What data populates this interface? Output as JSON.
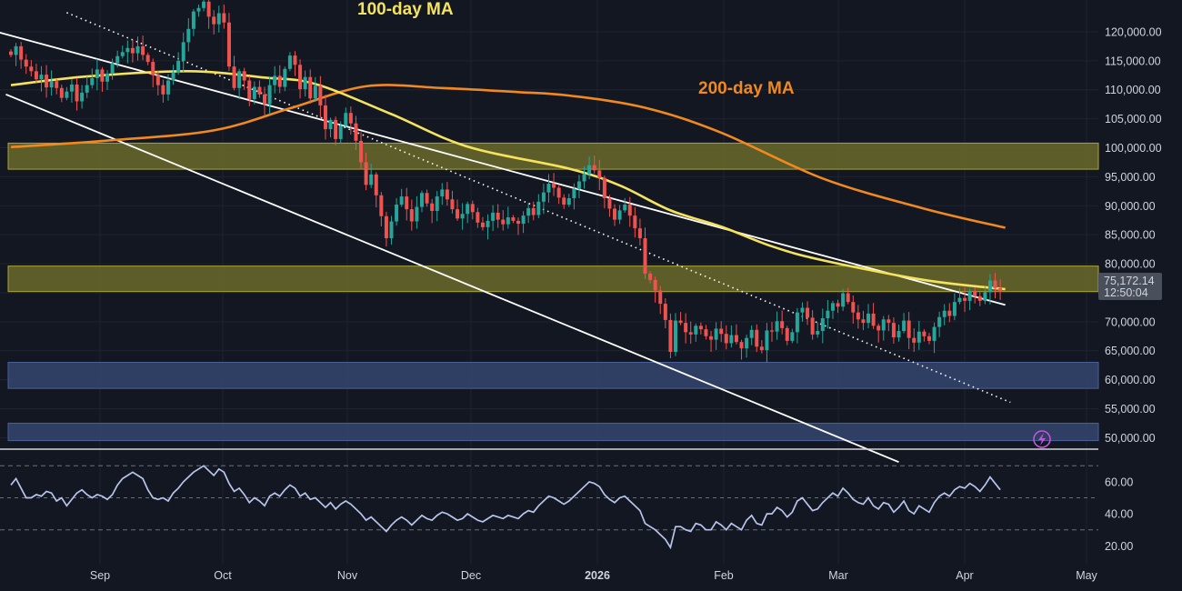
{
  "colors": {
    "background": "#131722",
    "grid": "#1f2330",
    "up": "#26a69a",
    "down": "#ef5350",
    "ma100": "#f5e35d",
    "ma200": "#f0891f",
    "rsi": "#b7c4ec",
    "zone_yellow": "#6b6a2a",
    "zone_blue": "#35456f",
    "channel": "#ffffff",
    "price_tag": "#4a4f5c",
    "lightning": "#c255d8"
  },
  "annotations": {
    "ma100": "100-day MA",
    "ma200": "200-day MA"
  },
  "price_tag": {
    "price": "75,172.14",
    "countdown": "12:50:04"
  },
  "icons": {
    "alert": "lightning-icon"
  },
  "chart_data": [
    {
      "type": "candlestick",
      "title": "",
      "y_ticks": [
        "120,000.00",
        "115,000.00",
        "110,000.00",
        "105,000.00",
        "100,000.00",
        "95,000.00",
        "90,000.00",
        "85,000.00",
        "80,000.00",
        "75,000.00",
        "70,000.00",
        "65,000.00",
        "60,000.00",
        "55,000.00",
        "50,000.00"
      ],
      "ylim": [
        46000,
        122500
      ],
      "x_ticks": [
        "Sep",
        "Oct",
        "Nov",
        "Dec",
        "2026",
        "Feb",
        "Mar",
        "Apr",
        "May"
      ],
      "x_ticks_bold": [
        "2026"
      ],
      "grid": true,
      "candle_closes": [
        116000,
        117500,
        115200,
        114000,
        113200,
        111800,
        112600,
        110400,
        111500,
        110300,
        108600,
        109700,
        110900,
        108000,
        109500,
        110800,
        112000,
        113500,
        111400,
        112800,
        114600,
        115800,
        116500,
        117200,
        116300,
        117500,
        116000,
        114800,
        112500,
        110800,
        109200,
        111600,
        113000,
        115000,
        118200,
        120500,
        123500,
        124100,
        125200,
        122600,
        121300,
        123200,
        121600,
        114000,
        110300,
        113200,
        111600,
        108400,
        110500,
        109200,
        107500,
        110800,
        112400,
        110500,
        113600,
        115900,
        114300,
        110100,
        112200,
        108500,
        110700,
        107300,
        103200,
        104800,
        101500,
        103800,
        106000,
        104200,
        101200,
        97500,
        93600,
        95400,
        91800,
        88200,
        84400,
        87300,
        90200,
        91600,
        89400,
        87300,
        89800,
        92200,
        90400,
        89100,
        91600,
        92800,
        91100,
        89400,
        87800,
        88600,
        90300,
        88900,
        87100,
        86300,
        87400,
        88800,
        87600,
        86800,
        88000,
        87400,
        86900,
        88300,
        89600,
        88400,
        90700,
        92300,
        93800,
        93100,
        91400,
        90200,
        91300,
        92900,
        94200,
        95500,
        97000,
        96100,
        94800,
        91300,
        89500,
        87600,
        89200,
        90200,
        88300,
        86100,
        84400,
        78300,
        77200,
        75400,
        73100,
        70300,
        64800,
        70200,
        69800,
        68200,
        67800,
        69300,
        68700,
        67500,
        66900,
        68800,
        67900,
        66300,
        67700,
        66500,
        65400,
        67200,
        68600,
        65700,
        65100,
        68500,
        68300,
        70100,
        68900,
        66700,
        68200,
        71600,
        72400,
        70700,
        67800,
        68400,
        70600,
        71900,
        73200,
        72600,
        74900,
        73400,
        71600,
        70400,
        69800,
        71400,
        69300,
        68500,
        70400,
        69800,
        67300,
        68400,
        70200,
        67200,
        66400,
        68300,
        67500,
        66700,
        69100,
        70800,
        71900,
        71000,
        73400,
        74100,
        73600,
        75300,
        74400,
        73600,
        75100,
        77100,
        75800,
        75172.14
      ],
      "ma100": [
        [
          0,
          110800
        ],
        [
          15,
          112300
        ],
        [
          35,
          113200
        ],
        [
          50,
          112100
        ],
        [
          60,
          111000
        ],
        [
          75,
          105800
        ],
        [
          90,
          100200
        ],
        [
          110,
          96400
        ],
        [
          120,
          93500
        ],
        [
          130,
          89200
        ],
        [
          140,
          86400
        ],
        [
          150,
          83000
        ],
        [
          160,
          80600
        ],
        [
          180,
          77200
        ],
        [
          196,
          75600
        ]
      ],
      "ma200": [
        [
          0,
          100100
        ],
        [
          20,
          101300
        ],
        [
          40,
          103000
        ],
        [
          55,
          106800
        ],
        [
          70,
          110600
        ],
        [
          85,
          110300
        ],
        [
          100,
          109600
        ],
        [
          110,
          109000
        ],
        [
          125,
          106900
        ],
        [
          140,
          102600
        ],
        [
          160,
          94700
        ],
        [
          180,
          89500
        ],
        [
          196,
          86200
        ]
      ],
      "zones": [
        {
          "from": 96300,
          "to": 100800,
          "color": "zone_yellow"
        },
        {
          "from": 75200,
          "to": 79600,
          "color": "zone_yellow"
        },
        {
          "from": 58500,
          "to": 63000,
          "color": "zone_blue"
        },
        {
          "from": 49500,
          "to": 52500,
          "color": "zone_blue"
        }
      ],
      "trendlines": [
        {
          "name": "channel-upper",
          "points": [
            [
              -18,
              123600
            ],
            [
              196,
              72900
            ]
          ],
          "style": "solid"
        },
        {
          "name": "channel-lower",
          "points": [
            [
              -1,
              109200
            ],
            [
              175,
              45800
            ]
          ],
          "style": "solid"
        },
        {
          "name": "dotted-trend",
          "points": [
            [
              11,
              123300
            ],
            [
              197,
              56100
            ]
          ],
          "style": "dotted"
        }
      ]
    },
    {
      "type": "line",
      "title": "",
      "y_ticks": [
        "60.00",
        "40.00",
        "20.00"
      ],
      "ylim": [
        14,
        73
      ],
      "levels": [
        70,
        50,
        30
      ],
      "series": [
        {
          "values": [
            58,
            62,
            56,
            50,
            50,
            52,
            51,
            54,
            53,
            48,
            50,
            45,
            49,
            53,
            55,
            52,
            50,
            52,
            51,
            49,
            52,
            58,
            62,
            64,
            66,
            64,
            62,
            55,
            50,
            49,
            50,
            48,
            53,
            56,
            60,
            63,
            66,
            68,
            70,
            67,
            64,
            68,
            66,
            59,
            54,
            56,
            52,
            47,
            50,
            48,
            45,
            51,
            53,
            51,
            55,
            58,
            56,
            51,
            53,
            49,
            50,
            47,
            44,
            47,
            43,
            46,
            48,
            46,
            43,
            40,
            36,
            38,
            35,
            32,
            29,
            33,
            36,
            38,
            36,
            33,
            36,
            39,
            37,
            36,
            39,
            41,
            40,
            38,
            36,
            37,
            40,
            38,
            36,
            35,
            37,
            39,
            38,
            37,
            39,
            38,
            37,
            40,
            42,
            41,
            45,
            48,
            51,
            50,
            48,
            46,
            48,
            51,
            54,
            57,
            60,
            59,
            57,
            52,
            49,
            47,
            50,
            51,
            48,
            45,
            42,
            34,
            32,
            30,
            27,
            24,
            19,
            32,
            32,
            30,
            29,
            34,
            33,
            30,
            30,
            35,
            33,
            30,
            34,
            32,
            30,
            36,
            39,
            34,
            33,
            40,
            40,
            44,
            42,
            38,
            41,
            48,
            50,
            46,
            42,
            43,
            47,
            50,
            53,
            51,
            56,
            53,
            49,
            47,
            46,
            50,
            45,
            43,
            47,
            46,
            41,
            44,
            48,
            42,
            40,
            45,
            43,
            41,
            47,
            51,
            53,
            51,
            55,
            57,
            56,
            59,
            57,
            54,
            58,
            63,
            59,
            55
          ]
        }
      ]
    }
  ]
}
